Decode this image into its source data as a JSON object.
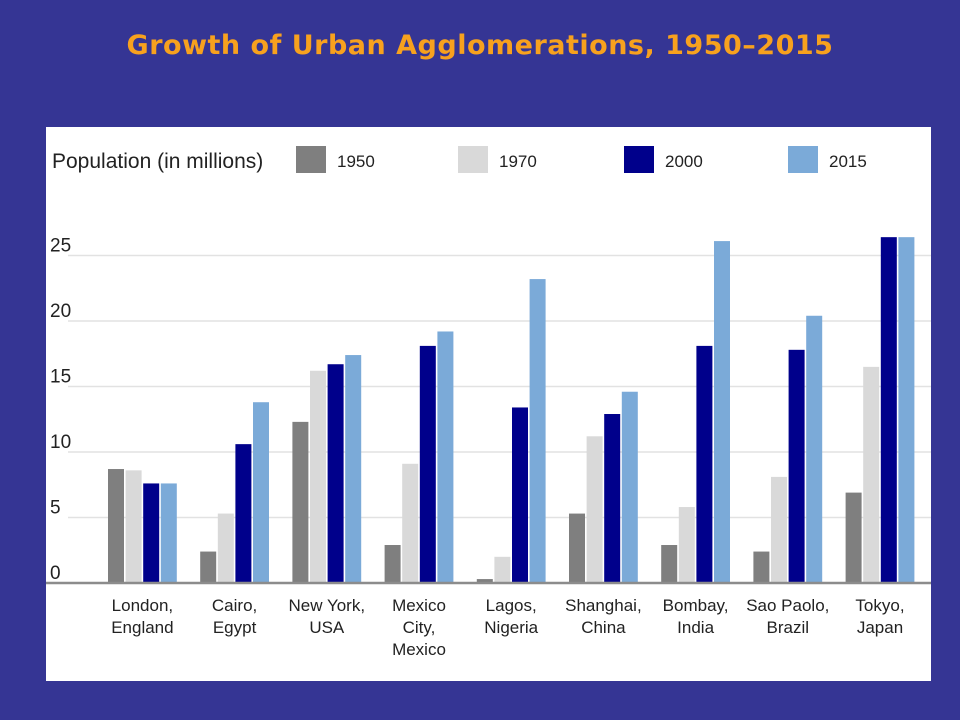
{
  "slide": {
    "title": "Growth of Urban Agglomerations, 1950–2015",
    "title_color": "#F7A11E",
    "background_color": "#353594"
  },
  "chart_data": {
    "type": "bar",
    "ylabel": "Population (in millions)",
    "ylim": [
      0,
      27
    ],
    "yticks": [
      0,
      5,
      10,
      15,
      20,
      25
    ],
    "grid": true,
    "legend_position": "top",
    "categories": [
      [
        "London,",
        "England"
      ],
      [
        "Cairo,",
        "Egypt"
      ],
      [
        "New York,",
        "USA"
      ],
      [
        "Mexico",
        "City,",
        "Mexico"
      ],
      [
        "Lagos,",
        "Nigeria"
      ],
      [
        "Shanghai,",
        "China"
      ],
      [
        "Bombay,",
        "India"
      ],
      [
        "Sao Paolo,",
        "Brazil"
      ],
      [
        "Tokyo,",
        "Japan"
      ]
    ],
    "series": [
      {
        "name": "1950",
        "color": "#7f7f7f",
        "values": [
          8.7,
          2.4,
          12.3,
          2.9,
          0.3,
          5.3,
          2.9,
          2.4,
          6.9
        ]
      },
      {
        "name": "1970",
        "color": "#d9d9d9",
        "values": [
          8.6,
          5.3,
          16.2,
          9.1,
          2.0,
          11.2,
          5.8,
          8.1,
          16.5
        ]
      },
      {
        "name": "2000",
        "color": "#00008b",
        "values": [
          7.6,
          10.6,
          16.7,
          18.1,
          13.4,
          12.9,
          18.1,
          17.8,
          26.4
        ]
      },
      {
        "name": "2015",
        "color": "#7baad8",
        "values": [
          7.6,
          13.8,
          17.4,
          19.2,
          23.2,
          14.6,
          26.1,
          20.4,
          26.4
        ]
      }
    ]
  }
}
